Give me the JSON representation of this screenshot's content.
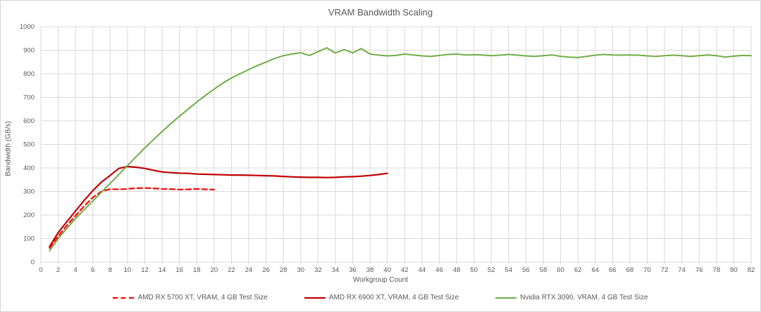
{
  "colors": {
    "background": "#FFFFFF",
    "grid": "#D9D9D9",
    "plot_border": "#D9D9D9",
    "text": "#595959"
  },
  "chart_data": {
    "type": "line",
    "title": "VRAM Bandwidth Scaling",
    "xlabel": "Workgroup Count",
    "ylabel": "Bandwidth (GB/s)",
    "xlim": [
      0,
      82
    ],
    "ylim": [
      0,
      1000
    ],
    "x_ticks": [
      0,
      2,
      4,
      6,
      8,
      10,
      12,
      14,
      16,
      18,
      20,
      22,
      24,
      26,
      28,
      30,
      32,
      34,
      36,
      38,
      40,
      42,
      44,
      46,
      48,
      50,
      52,
      54,
      56,
      58,
      60,
      62,
      64,
      66,
      68,
      70,
      72,
      74,
      76,
      78,
      80,
      82
    ],
    "y_ticks": [
      0,
      100,
      200,
      300,
      400,
      500,
      600,
      700,
      800,
      900,
      1000
    ],
    "grid": true,
    "legend_position": "bottom-center",
    "series": [
      {
        "name": "AMD RX 5700 XT, VRAM, 4 GB Test Size",
        "color": "#FF0000",
        "dash": "7,4.5",
        "width": 2.2,
        "x_start": 1,
        "x_step": 1,
        "values": [
          60,
          110,
          155,
          197,
          238,
          275,
          300,
          310,
          309,
          311,
          314,
          315,
          313,
          311,
          310,
          308,
          309,
          311,
          309,
          308
        ]
      },
      {
        "name": "AMD RX 6900 XT, VRAM, 4 GB Test Size",
        "color": "#C00000",
        "dash": null,
        "width": 2.2,
        "x_start": 1,
        "x_step": 1,
        "values": [
          66,
          125,
          172,
          217,
          262,
          304,
          340,
          368,
          398,
          406,
          403,
          398,
          390,
          383,
          380,
          378,
          377,
          374,
          373,
          372,
          371,
          370,
          370,
          369,
          368,
          367,
          366,
          364,
          362,
          361,
          360,
          360,
          359,
          360,
          362,
          363,
          365,
          368,
          372,
          377
        ]
      },
      {
        "name": "Nvidia RTX 3090, VRAM, 4 GB Test Size",
        "color": "#70AD47",
        "dash": null,
        "width": 2,
        "x_start": 1,
        "x_step": 1,
        "values": [
          48,
          100,
          143,
          185,
          223,
          260,
          297,
          334,
          372,
          410,
          448,
          485,
          520,
          555,
          588,
          620,
          650,
          680,
          708,
          735,
          760,
          782,
          800,
          818,
          835,
          850,
          865,
          877,
          884,
          890,
          878,
          894,
          910,
          888,
          903,
          889,
          907,
          884,
          879,
          876,
          878,
          884,
          880,
          876,
          874,
          878,
          882,
          884,
          880,
          881,
          880,
          877,
          879,
          882,
          879,
          876,
          874,
          877,
          880,
          874,
          871,
          869,
          874,
          879,
          882,
          880,
          879,
          880,
          879,
          876,
          874,
          877,
          879,
          877,
          874,
          877,
          880,
          877,
          871,
          875,
          878,
          877
        ]
      }
    ]
  }
}
